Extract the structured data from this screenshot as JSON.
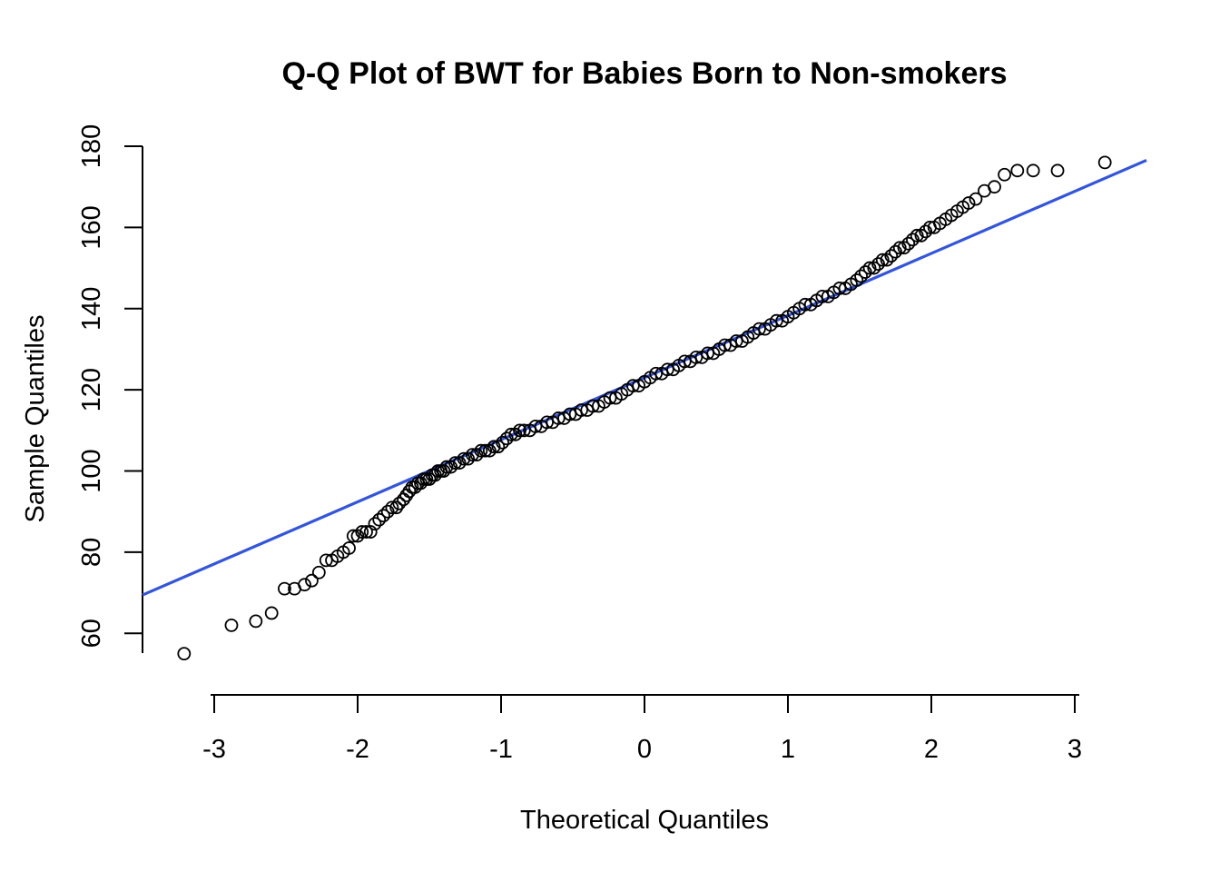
{
  "chart_data": {
    "type": "scatter",
    "title": "Q-Q Plot of BWT for Babies Born to Non-smokers",
    "xlabel": "Theoretical Quantiles",
    "ylabel": "Sample Quantiles",
    "xlim": [
      -3.5,
      3.5
    ],
    "ylim": [
      50,
      180
    ],
    "x_ticks": [
      -3,
      -2,
      -1,
      0,
      1,
      2,
      3
    ],
    "y_ticks": [
      60,
      80,
      100,
      120,
      140,
      160,
      180
    ],
    "grid": false,
    "legend": "none",
    "reference_line": {
      "color": "#3355dd",
      "intercept": 123,
      "slope": 15.3
    },
    "series": [
      {
        "marker": "open-circle",
        "points": [
          [
            -3.21,
            55
          ],
          [
            -2.88,
            62
          ],
          [
            -2.71,
            63
          ],
          [
            -2.6,
            65
          ],
          [
            -2.51,
            71
          ],
          [
            -2.44,
            71
          ],
          [
            -2.37,
            72
          ],
          [
            -2.32,
            73
          ],
          [
            -2.27,
            75
          ],
          [
            -2.22,
            78
          ],
          [
            -2.18,
            78
          ],
          [
            -2.14,
            79
          ],
          [
            -2.1,
            80
          ],
          [
            -2.06,
            81
          ],
          [
            -2.03,
            84
          ],
          [
            -2.0,
            84
          ],
          [
            -1.97,
            85
          ],
          [
            -1.94,
            85
          ],
          [
            -1.91,
            85
          ],
          [
            -1.88,
            87
          ],
          [
            -1.85,
            88
          ],
          [
            -1.82,
            89
          ],
          [
            -1.79,
            90
          ],
          [
            -1.76,
            91
          ],
          [
            -1.73,
            91
          ],
          [
            -1.71,
            92
          ],
          [
            -1.68,
            93
          ],
          [
            -1.66,
            94
          ],
          [
            -1.64,
            95
          ],
          [
            -1.62,
            96
          ],
          [
            -1.6,
            96
          ],
          [
            -1.58,
            97
          ],
          [
            -1.56,
            97
          ],
          [
            -1.54,
            98
          ],
          [
            -1.52,
            98
          ],
          [
            -1.5,
            98
          ],
          [
            -1.48,
            99
          ],
          [
            -1.46,
            99
          ],
          [
            -1.44,
            100
          ],
          [
            -1.42,
            100
          ],
          [
            -1.4,
            100
          ],
          [
            -1.38,
            101
          ],
          [
            -1.35,
            101
          ],
          [
            -1.32,
            102
          ],
          [
            -1.29,
            102
          ],
          [
            -1.26,
            103
          ],
          [
            -1.23,
            103
          ],
          [
            -1.2,
            104
          ],
          [
            -1.17,
            104
          ],
          [
            -1.14,
            105
          ],
          [
            -1.11,
            105
          ],
          [
            -1.08,
            105
          ],
          [
            -1.05,
            106
          ],
          [
            -1.02,
            106
          ],
          [
            -0.99,
            107
          ],
          [
            -0.96,
            108
          ],
          [
            -0.93,
            109
          ],
          [
            -0.9,
            109
          ],
          [
            -0.87,
            110
          ],
          [
            -0.84,
            110
          ],
          [
            -0.8,
            110
          ],
          [
            -0.76,
            111
          ],
          [
            -0.72,
            111
          ],
          [
            -0.68,
            112
          ],
          [
            -0.64,
            112
          ],
          [
            -0.6,
            113
          ],
          [
            -0.56,
            113
          ],
          [
            -0.52,
            114
          ],
          [
            -0.48,
            114
          ],
          [
            -0.44,
            115
          ],
          [
            -0.4,
            115
          ],
          [
            -0.36,
            116
          ],
          [
            -0.32,
            116
          ],
          [
            -0.28,
            117
          ],
          [
            -0.24,
            118
          ],
          [
            -0.2,
            118
          ],
          [
            -0.16,
            119
          ],
          [
            -0.12,
            120
          ],
          [
            -0.08,
            121
          ],
          [
            -0.04,
            121
          ],
          [
            0.0,
            122
          ],
          [
            0.04,
            123
          ],
          [
            0.08,
            124
          ],
          [
            0.12,
            124
          ],
          [
            0.16,
            125
          ],
          [
            0.2,
            125
          ],
          [
            0.24,
            126
          ],
          [
            0.28,
            127
          ],
          [
            0.32,
            127
          ],
          [
            0.36,
            128
          ],
          [
            0.4,
            128
          ],
          [
            0.44,
            129
          ],
          [
            0.48,
            129
          ],
          [
            0.52,
            130
          ],
          [
            0.56,
            131
          ],
          [
            0.6,
            131
          ],
          [
            0.64,
            132
          ],
          [
            0.68,
            132
          ],
          [
            0.72,
            133
          ],
          [
            0.76,
            134
          ],
          [
            0.8,
            135
          ],
          [
            0.84,
            135
          ],
          [
            0.88,
            136
          ],
          [
            0.92,
            137
          ],
          [
            0.96,
            137
          ],
          [
            1.0,
            138
          ],
          [
            1.04,
            139
          ],
          [
            1.08,
            140
          ],
          [
            1.12,
            141
          ],
          [
            1.16,
            141
          ],
          [
            1.2,
            142
          ],
          [
            1.24,
            143
          ],
          [
            1.28,
            143
          ],
          [
            1.32,
            144
          ],
          [
            1.36,
            145
          ],
          [
            1.4,
            145
          ],
          [
            1.44,
            146
          ],
          [
            1.48,
            147
          ],
          [
            1.51,
            148
          ],
          [
            1.54,
            149
          ],
          [
            1.57,
            150
          ],
          [
            1.6,
            150
          ],
          [
            1.63,
            151
          ],
          [
            1.66,
            152
          ],
          [
            1.69,
            152
          ],
          [
            1.72,
            153
          ],
          [
            1.75,
            154
          ],
          [
            1.78,
            155
          ],
          [
            1.81,
            155
          ],
          [
            1.84,
            156
          ],
          [
            1.87,
            157
          ],
          [
            1.9,
            158
          ],
          [
            1.93,
            158
          ],
          [
            1.96,
            159
          ],
          [
            1.99,
            160
          ],
          [
            2.02,
            160
          ],
          [
            2.06,
            161
          ],
          [
            2.1,
            162
          ],
          [
            2.14,
            163
          ],
          [
            2.18,
            164
          ],
          [
            2.22,
            165
          ],
          [
            2.26,
            166
          ],
          [
            2.31,
            167
          ],
          [
            2.37,
            169
          ],
          [
            2.44,
            170
          ],
          [
            2.51,
            173
          ],
          [
            2.6,
            174
          ],
          [
            2.71,
            174
          ],
          [
            2.88,
            174
          ],
          [
            3.21,
            176
          ]
        ]
      }
    ]
  }
}
